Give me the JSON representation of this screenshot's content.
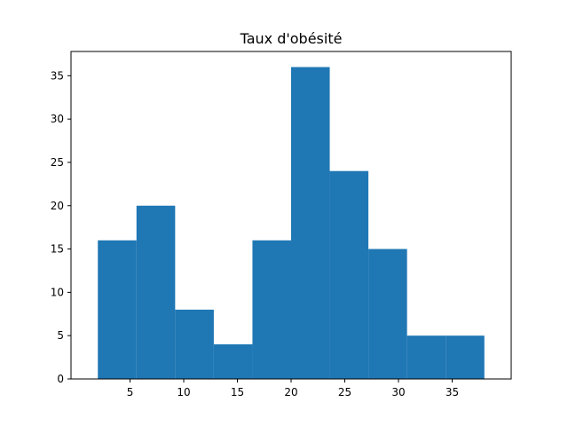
{
  "chart_data": {
    "type": "bar",
    "title": "Taux d'obésité",
    "xlabel": "",
    "ylabel": "",
    "bin_edges": [
      2,
      5.6,
      9.2,
      12.8,
      16.4,
      20,
      23.6,
      27.2,
      30.8,
      34.4,
      38
    ],
    "values": [
      16,
      20,
      8,
      4,
      16,
      36,
      24,
      15,
      5,
      5
    ],
    "xlim": [
      -0.5,
      40.5
    ],
    "ylim": [
      0,
      37.8
    ],
    "xticks": [
      5,
      10,
      15,
      20,
      25,
      30,
      35
    ],
    "yticks": [
      0,
      5,
      10,
      15,
      20,
      25,
      30,
      35
    ],
    "bar_color": "#1f77b4",
    "grid": false,
    "legend": false
  }
}
